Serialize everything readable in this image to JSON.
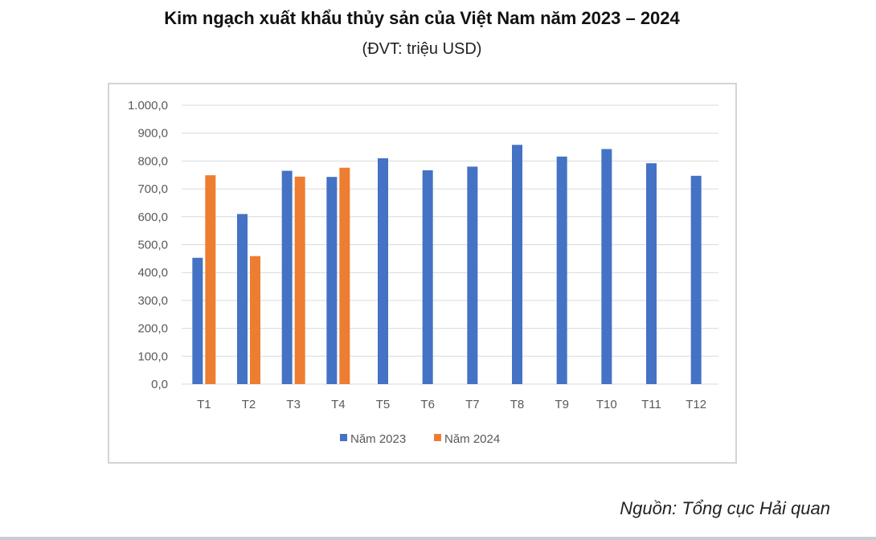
{
  "header": {
    "title": "Kim ngạch xuất khẩu thủy sản của Việt Nam năm 2023 – 2024",
    "subtitle": "(ĐVT: triệu USD)"
  },
  "source": "Nguồn: Tổng cục Hải quan",
  "chart_data": {
    "type": "bar",
    "categories": [
      "T1",
      "T2",
      "T3",
      "T4",
      "T5",
      "T6",
      "T7",
      "T8",
      "T9",
      "T10",
      "T11",
      "T12"
    ],
    "series": [
      {
        "name": "Năm 2023",
        "color": "#4472c4",
        "values": [
          453,
          610,
          765,
          743,
          810,
          767,
          780,
          858,
          816,
          843,
          792,
          747
        ]
      },
      {
        "name": "Năm 2024",
        "color": "#ed7d31",
        "values": [
          749,
          459,
          744,
          776,
          null,
          null,
          null,
          null,
          null,
          null,
          null,
          null
        ]
      }
    ],
    "ylim": [
      0,
      1000
    ],
    "yticks": [
      "0,0",
      "100,0",
      "200,0",
      "300,0",
      "400,0",
      "500,0",
      "600,0",
      "700,0",
      "800,0",
      "900,0",
      "1.000,0"
    ],
    "grid": true,
    "legend_position": "bottom"
  }
}
